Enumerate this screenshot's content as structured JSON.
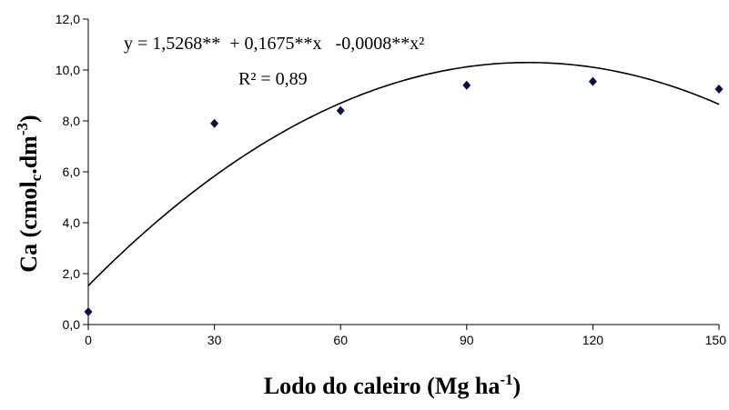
{
  "chart_data": {
    "type": "scatter",
    "xlabel": "Lodo do caleiro (Mg ha-1)",
    "ylabel": "Ca (cmolc.dm-3)",
    "xlabel_parts": {
      "main": "Lodo do caleiro (Mg ha",
      "sup": "-1",
      "tail": ")"
    },
    "ylabel_parts": {
      "main": "Ca (cmol",
      "sub": "c",
      "mid": ".dm",
      "sup": "-3",
      "tail": ")"
    },
    "xlim": [
      0,
      150
    ],
    "ylim": [
      0,
      12
    ],
    "x_ticks": [
      "0",
      "30",
      "60",
      "90",
      "120",
      "150"
    ],
    "x_tick_values": [
      0,
      30,
      60,
      90,
      120,
      150
    ],
    "y_ticks": [
      "0,0",
      "2,0",
      "4,0",
      "6,0",
      "8,0",
      "10,0",
      "12,0"
    ],
    "y_tick_values": [
      0,
      2,
      4,
      6,
      8,
      10,
      12
    ],
    "series": [
      {
        "x": [
          0,
          30,
          60,
          90,
          120,
          150
        ],
        "y": [
          0.5,
          7.9,
          8.4,
          9.4,
          9.55,
          9.25
        ],
        "marker": "diamond",
        "color": "#0d0d3d"
      }
    ],
    "fit": {
      "coefficients": [
        1.5268,
        0.1675,
        -0.0008
      ],
      "color": "#000000"
    },
    "equation": "y = 1,5268**  + 0,1675**x   -0,0008**x²",
    "r_squared": "R² = 0,89",
    "grid": false,
    "legend": "none"
  }
}
